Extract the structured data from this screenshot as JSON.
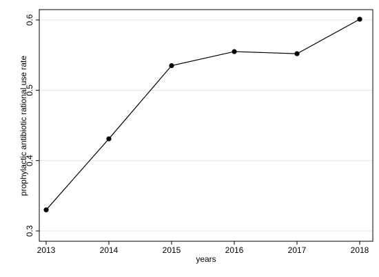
{
  "chart_data": {
    "type": "line",
    "title": "",
    "xlabel": "years",
    "ylabel": "prophylactic antibiotic rational use rate",
    "x": [
      2013,
      2014,
      2015,
      2016,
      2017,
      2018
    ],
    "x_tick_labels": [
      "2013",
      "2014",
      "2015",
      "2016",
      "2017",
      "2018"
    ],
    "y_ticks": [
      0.3,
      0.4,
      0.5,
      0.6
    ],
    "y_tick_labels": [
      "0.3",
      "0.4",
      "0.5",
      "0.6"
    ],
    "series": [
      {
        "values": [
          0.33,
          0.431,
          0.535,
          0.555,
          0.552,
          0.601
        ]
      }
    ],
    "xlim": [
      2013,
      2018
    ],
    "ylim": [
      0.3,
      0.6
    ],
    "grid": "horizontal",
    "legend": "none",
    "colors": {
      "line": "#000000",
      "marker": "#000000",
      "grid": "#dfe9ee",
      "frame": "#000000"
    }
  }
}
